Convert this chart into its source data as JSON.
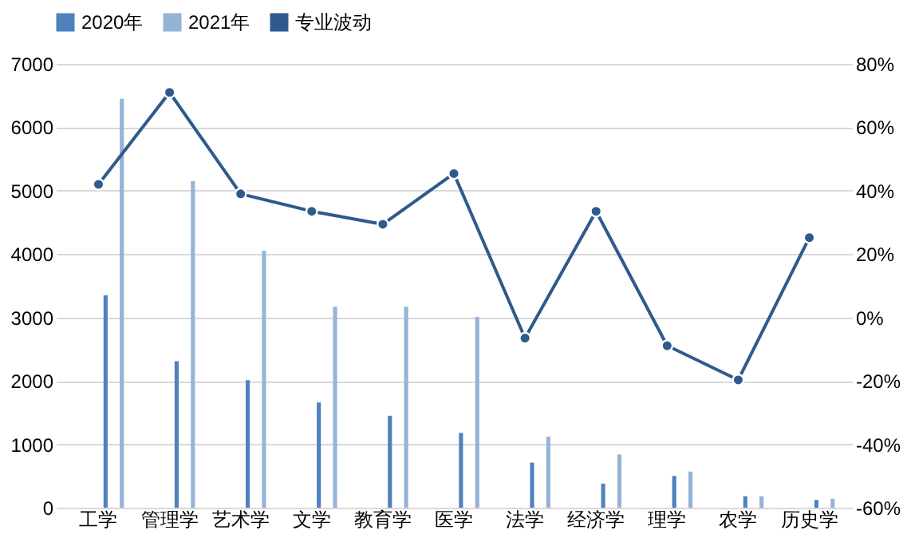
{
  "chart_data": {
    "type": "bar",
    "categories": [
      "工学",
      "管理学",
      "艺术学",
      "文学",
      "教育学",
      "医学",
      "法学",
      "经济学",
      "理学",
      "农学",
      "历史学"
    ],
    "series": [
      {
        "name": "2020年",
        "color": "#4f81bd",
        "values": [
          3350,
          2310,
          2010,
          1660,
          1450,
          1180,
          710,
          380,
          500,
          180,
          120
        ]
      },
      {
        "name": "2021年",
        "color": "#95b3d7",
        "values": [
          6450,
          5150,
          4050,
          3170,
          3170,
          3010,
          1120,
          840,
          570,
          180,
          140
        ]
      },
      {
        "name": "专业波动",
        "type": "line",
        "axis": "y2",
        "color": "#2f5a8c",
        "values": [
          42,
          71,
          39,
          33.5,
          29.4,
          45.4,
          -6.5,
          33.5,
          -8.9,
          -19.7,
          25.2
        ]
      }
    ],
    "ylim": [
      0,
      7000
    ],
    "yticks": [
      0,
      1000,
      2000,
      3000,
      4000,
      5000,
      6000,
      7000
    ],
    "y2lim": [
      -60,
      80
    ],
    "y2ticks": [
      {
        "value": -60,
        "label": "-60%"
      },
      {
        "value": -40,
        "label": "-40%"
      },
      {
        "value": -20,
        "label": "-20%"
      },
      {
        "value": 0,
        "label": "0%"
      },
      {
        "value": 20,
        "label": "20%"
      },
      {
        "value": 40,
        "label": "40%"
      },
      {
        "value": 60,
        "label": "60%"
      },
      {
        "value": 80,
        "label": "80%"
      }
    ],
    "grid": "y",
    "legend": "top",
    "marker": "circle",
    "line_style": "solid"
  }
}
